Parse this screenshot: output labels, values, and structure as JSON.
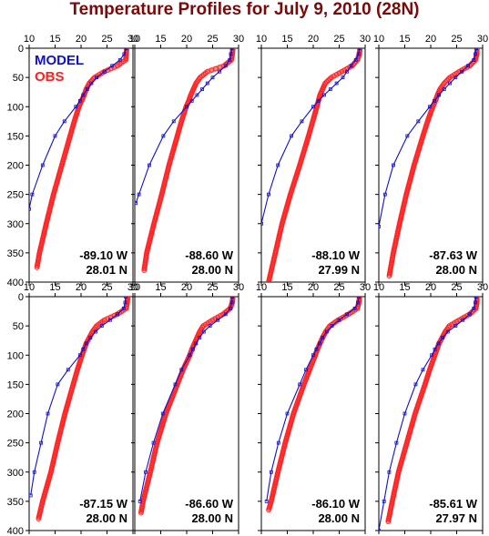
{
  "chart_data": {
    "type": "line",
    "title": "Temperature Profiles for July 9, 2010 (28N)",
    "xlim": [
      10,
      30
    ],
    "ylim": [
      0,
      400
    ],
    "y_inverted": true,
    "x_ticks": [
      "10",
      "15",
      "20",
      "25",
      "30"
    ],
    "y_ticks": [
      "0",
      "50",
      "100",
      "150",
      "200",
      "250",
      "300",
      "350",
      "400"
    ],
    "legend": {
      "placement": "top-left",
      "entries": [
        "MODEL",
        "OBS"
      ]
    },
    "colors": {
      "model": "#1010d0",
      "obs": "#ff2020",
      "title": "#7a0a0a"
    },
    "panels": [
      {
        "lon_label": "-89.10 W",
        "lat_label": "28.01 N",
        "model": {
          "depth": [
            0,
            10,
            20,
            30,
            40,
            50,
            60,
            70,
            80,
            90,
            100,
            125,
            150,
            200,
            250,
            275
          ],
          "temp": [
            28.7,
            28.3,
            27.5,
            26.0,
            24.5,
            23.0,
            22.0,
            21.2,
            20.4,
            19.8,
            19.0,
            16.8,
            15.0,
            12.6,
            10.6,
            10.0
          ]
        },
        "obs": {
          "depth": [
            0,
            10,
            20,
            30,
            40,
            50,
            60,
            70,
            80,
            90,
            100,
            125,
            150,
            200,
            250,
            300,
            350,
            375
          ],
          "temp": [
            28.8,
            28.7,
            28.6,
            27.0,
            24.5,
            22.6,
            21.6,
            21.0,
            20.6,
            20.1,
            19.6,
            18.7,
            17.9,
            16.3,
            14.7,
            13.3,
            12.0,
            11.5
          ]
        }
      },
      {
        "lon_label": "-88.60 W",
        "lat_label": "28.00 N",
        "model": {
          "depth": [
            0,
            10,
            20,
            30,
            40,
            50,
            60,
            70,
            80,
            90,
            100,
            125,
            150,
            200,
            250,
            265
          ],
          "temp": [
            28.7,
            28.5,
            28.3,
            27.5,
            26.3,
            25.0,
            24.0,
            23.0,
            22.0,
            21.0,
            20.0,
            17.5,
            15.5,
            12.8,
            10.8,
            10.2
          ]
        },
        "obs": {
          "depth": [
            0,
            10,
            20,
            30,
            40,
            50,
            60,
            70,
            80,
            90,
            100,
            125,
            150,
            200,
            250,
            300,
            350,
            380
          ],
          "temp": [
            28.9,
            28.8,
            28.6,
            27.2,
            24.0,
            22.6,
            21.8,
            21.3,
            20.8,
            20.4,
            19.9,
            19.0,
            18.2,
            16.6,
            15.2,
            13.7,
            12.3,
            11.8
          ]
        }
      },
      {
        "lon_label": "-88.10 W",
        "lat_label": "27.99 N",
        "model": {
          "depth": [
            0,
            10,
            20,
            30,
            40,
            50,
            60,
            70,
            80,
            90,
            100,
            125,
            150,
            200,
            250,
            300
          ],
          "temp": [
            28.9,
            28.7,
            28.2,
            27.3,
            26.5,
            25.7,
            24.5,
            23.3,
            22.1,
            21.0,
            20.0,
            17.8,
            15.8,
            13.2,
            11.4,
            10.0
          ]
        },
        "obs": {
          "depth": [
            0,
            10,
            20,
            30,
            40,
            50,
            60,
            70,
            80,
            90,
            100,
            125,
            150,
            200,
            250,
            300,
            350,
            400
          ],
          "temp": [
            29.0,
            28.9,
            28.5,
            27.5,
            25.5,
            23.5,
            22.3,
            21.8,
            21.3,
            21.0,
            20.7,
            19.9,
            19.1,
            17.4,
            15.6,
            14.0,
            12.7,
            11.4
          ]
        }
      },
      {
        "lon_label": "-87.63 W",
        "lat_label": "28.00 N",
        "model": {
          "depth": [
            0,
            10,
            20,
            30,
            40,
            50,
            60,
            70,
            80,
            90,
            100,
            125,
            150,
            200,
            250,
            305
          ],
          "temp": [
            28.8,
            28.6,
            28.3,
            27.2,
            26.0,
            24.8,
            23.7,
            22.6,
            21.6,
            20.7,
            19.8,
            17.6,
            15.5,
            12.8,
            11.2,
            10.0
          ]
        },
        "obs": {
          "depth": [
            0,
            10,
            20,
            30,
            40,
            50,
            60,
            70,
            80,
            90,
            100,
            125,
            150,
            200,
            250,
            300,
            350,
            390
          ],
          "temp": [
            28.9,
            28.9,
            28.6,
            27.5,
            25.5,
            23.7,
            22.6,
            21.8,
            21.3,
            20.9,
            20.4,
            19.4,
            18.5,
            16.8,
            15.3,
            14.0,
            12.8,
            12.0
          ]
        }
      },
      {
        "lon_label": "-87.15 W",
        "lat_label": "28.00 N",
        "model": {
          "depth": [
            0,
            10,
            20,
            30,
            40,
            50,
            60,
            70,
            80,
            90,
            100,
            125,
            150,
            200,
            250,
            300,
            340
          ],
          "temp": [
            28.6,
            28.5,
            28.2,
            27.0,
            25.6,
            24.0,
            22.8,
            21.8,
            21.0,
            20.4,
            19.8,
            17.5,
            15.5,
            13.6,
            12.3,
            11.0,
            10.3
          ]
        },
        "obs": {
          "depth": [
            0,
            10,
            20,
            30,
            40,
            50,
            60,
            70,
            80,
            90,
            100,
            125,
            150,
            200,
            250,
            300,
            350,
            380
          ],
          "temp": [
            29.0,
            28.9,
            28.7,
            27.0,
            24.5,
            23.0,
            22.2,
            21.6,
            21.0,
            20.6,
            20.2,
            19.3,
            18.5,
            16.9,
            15.5,
            14.2,
            12.6,
            11.8
          ]
        }
      },
      {
        "lon_label": "-86.60 W",
        "lat_label": "28.00 N",
        "model": {
          "depth": [
            0,
            10,
            20,
            30,
            40,
            50,
            60,
            70,
            80,
            90,
            100,
            125,
            150,
            200,
            250,
            300,
            350
          ],
          "temp": [
            28.8,
            28.7,
            28.4,
            27.5,
            26.0,
            24.5,
            23.3,
            22.5,
            21.8,
            21.2,
            20.6,
            19.0,
            17.8,
            15.4,
            13.6,
            12.1,
            11.0
          ]
        },
        "obs": {
          "depth": [
            0,
            10,
            20,
            30,
            40,
            50,
            60,
            70,
            80,
            90,
            100,
            125,
            150,
            200,
            250,
            300,
            350,
            370
          ],
          "temp": [
            28.9,
            28.8,
            28.4,
            27.0,
            25.0,
            23.2,
            22.5,
            22.0,
            21.5,
            21.0,
            20.6,
            19.3,
            18.2,
            16.0,
            14.3,
            13.0,
            11.6,
            11.2
          ]
        }
      },
      {
        "lon_label": "-86.10 W",
        "lat_label": "28.00 N",
        "model": {
          "depth": [
            0,
            10,
            20,
            30,
            40,
            50,
            60,
            70,
            80,
            90,
            100,
            125,
            150,
            200,
            250,
            300,
            350
          ],
          "temp": [
            28.8,
            28.6,
            28.0,
            26.5,
            25.0,
            23.6,
            22.6,
            21.8,
            21.2,
            20.6,
            20.0,
            18.6,
            17.4,
            15.0,
            13.3,
            11.9,
            11.0
          ]
        },
        "obs": {
          "depth": [
            0,
            10,
            20,
            30,
            40,
            50,
            60,
            70,
            80,
            90,
            100,
            125,
            150,
            200,
            250,
            300,
            350,
            365
          ],
          "temp": [
            28.9,
            28.8,
            28.5,
            26.8,
            24.8,
            23.2,
            22.4,
            21.8,
            21.3,
            20.8,
            20.4,
            19.3,
            18.2,
            16.2,
            14.6,
            13.2,
            11.9,
            11.4
          ]
        }
      },
      {
        "lon_label": "-85.61 W",
        "lat_label": "27.97 N",
        "model": {
          "depth": [
            0,
            10,
            20,
            30,
            40,
            50,
            60,
            70,
            80,
            90,
            100,
            125,
            150,
            200,
            250,
            300,
            350,
            400
          ],
          "temp": [
            28.7,
            28.6,
            28.3,
            27.5,
            26.2,
            24.8,
            23.3,
            22.3,
            21.5,
            20.8,
            20.2,
            18.5,
            17.1,
            15.0,
            13.4,
            12.0,
            11.0,
            10.0
          ]
        },
        "obs": {
          "depth": [
            0,
            10,
            20,
            30,
            40,
            50,
            60,
            70,
            80,
            90,
            100,
            125,
            150,
            200,
            250,
            300,
            350,
            385
          ],
          "temp": [
            28.9,
            28.9,
            28.7,
            27.5,
            25.5,
            23.6,
            22.8,
            22.2,
            21.6,
            21.2,
            20.8,
            19.8,
            18.9,
            17.0,
            15.4,
            13.8,
            12.6,
            11.8
          ]
        }
      }
    ]
  }
}
